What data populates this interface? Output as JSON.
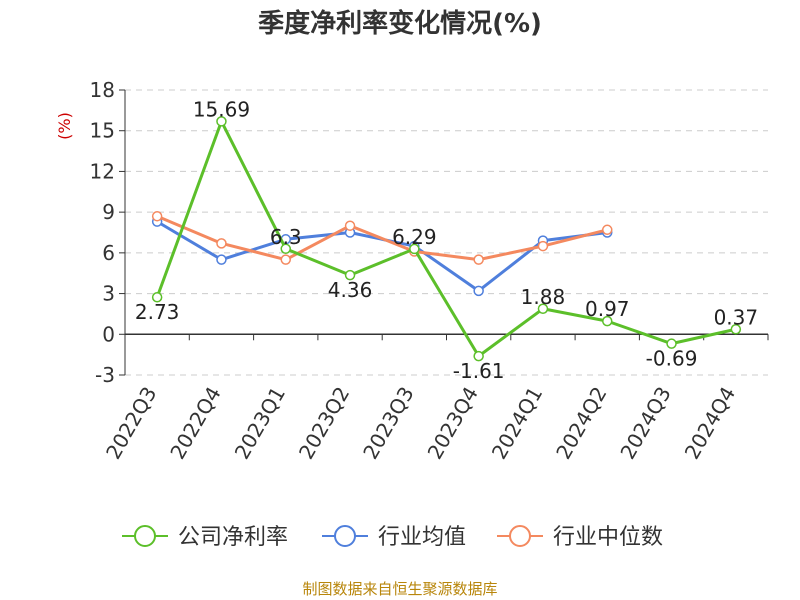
{
  "title": "季度净利率变化情况(%)",
  "unit_label": "(%)",
  "source_text": "制图数据来自恒生聚源数据库",
  "chart_data": {
    "type": "line",
    "title": "季度净利率变化情况(%)",
    "ylabel": "(%)",
    "ylim": [
      -3,
      18
    ],
    "yticks": [
      -3,
      0,
      3,
      6,
      9,
      12,
      15,
      18
    ],
    "grid": true,
    "legend_position": "bottom",
    "categories": [
      "2022Q3",
      "2022Q4",
      "2023Q1",
      "2023Q2",
      "2023Q3",
      "2023Q4",
      "2024Q1",
      "2024Q2",
      "2024Q3",
      "2024Q4"
    ],
    "series": [
      {
        "name": "公司净利率",
        "color": "#5cbf2a",
        "values": [
          2.73,
          15.69,
          6.3,
          4.36,
          6.29,
          -1.61,
          1.88,
          0.97,
          -0.69,
          0.37
        ],
        "labels": [
          "2.73",
          "15.69",
          "6.3",
          "4.36",
          "6.29",
          "-1.61",
          "1.88",
          "0.97",
          "-0.69",
          "0.37"
        ]
      },
      {
        "name": "行业均值",
        "color": "#4f7fdc",
        "values": [
          8.3,
          5.5,
          7.0,
          7.5,
          6.5,
          3.2,
          6.9,
          7.5,
          null,
          null
        ]
      },
      {
        "name": "行业中位数",
        "color": "#f4895f",
        "values": [
          8.7,
          6.7,
          5.5,
          8.0,
          6.1,
          5.5,
          6.5,
          7.7,
          null,
          null
        ]
      }
    ]
  }
}
